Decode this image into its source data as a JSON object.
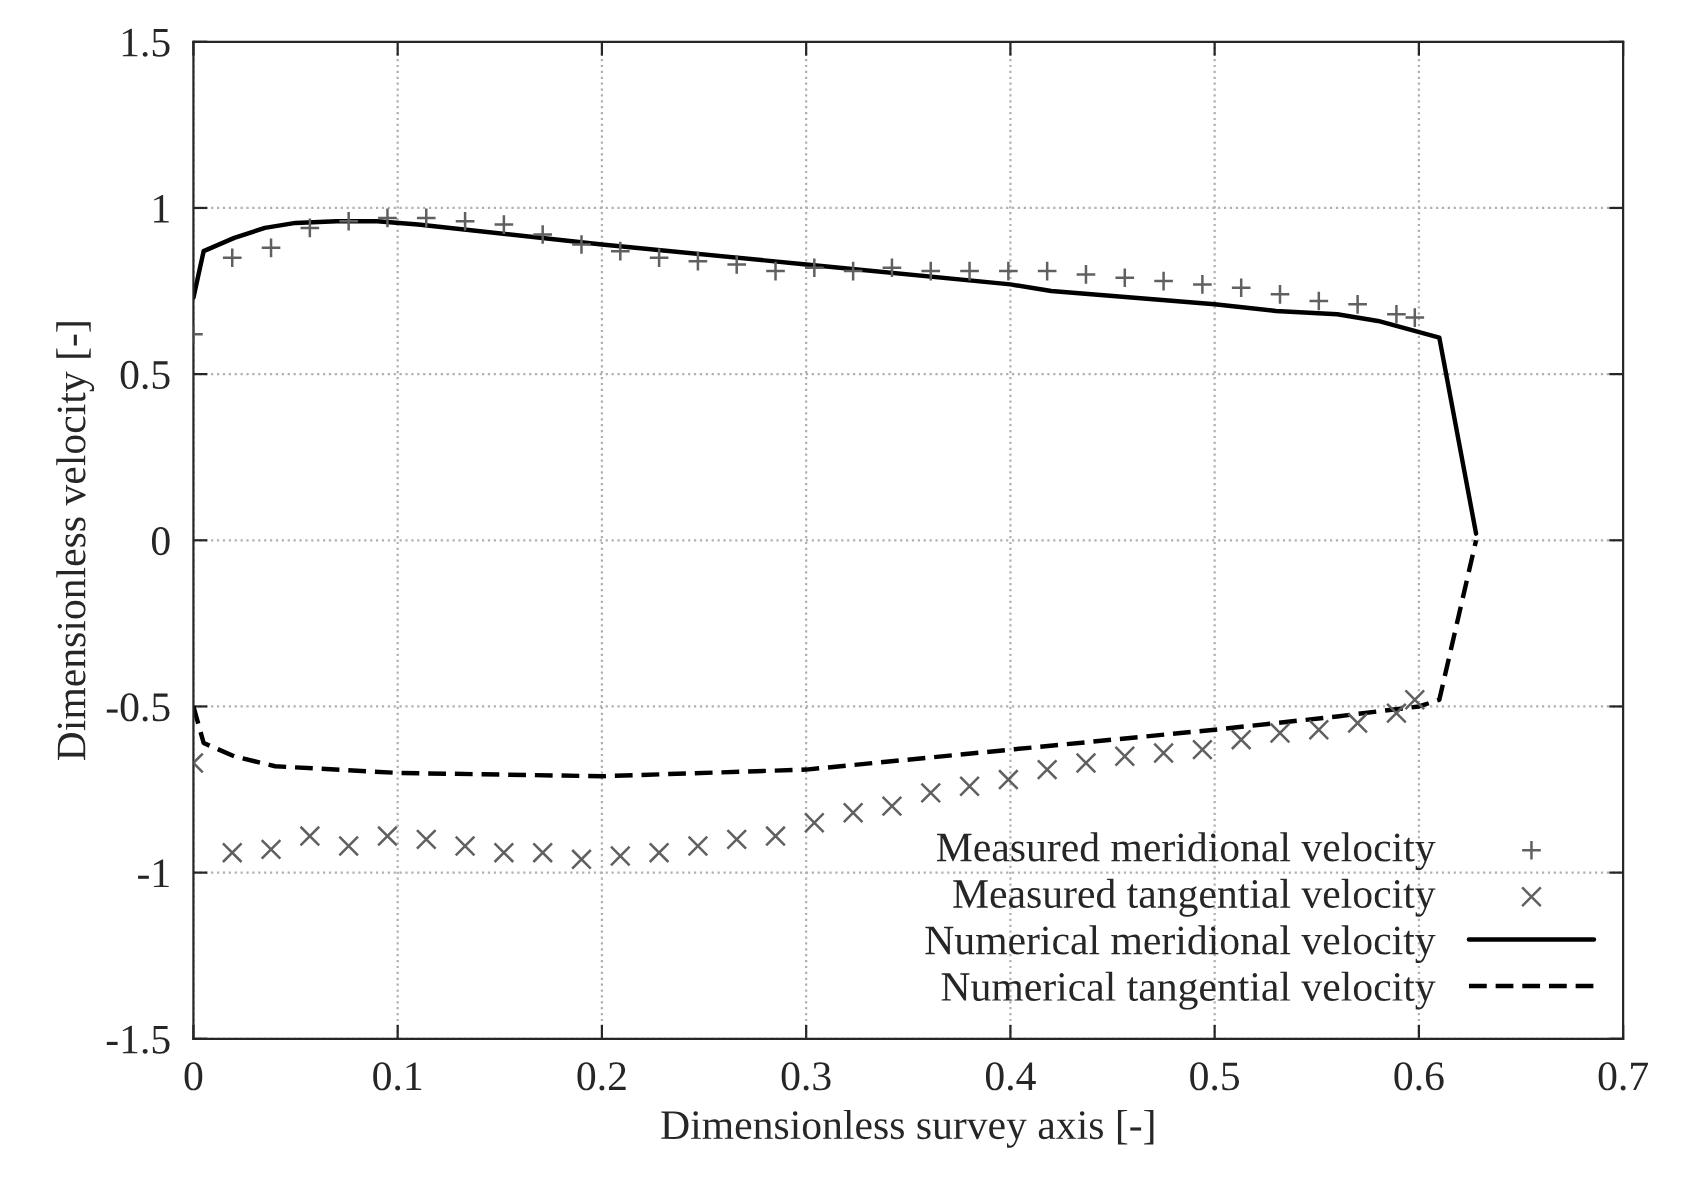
{
  "chart_data": {
    "type": "line",
    "xlabel": "Dimensionless survey axis [-]",
    "ylabel": "Dimensionless velocity [-]",
    "xlim": [
      0,
      0.7
    ],
    "ylim": [
      -1.5,
      1.5
    ],
    "xticks": [
      0,
      0.1,
      0.2,
      0.3,
      0.4,
      0.5,
      0.6,
      0.7
    ],
    "yticks": [
      -1.5,
      -1,
      -0.5,
      0,
      0.5,
      1,
      1.5
    ],
    "grid": true,
    "legend": "bottom right",
    "series": [
      {
        "name": "Measured meridional velocity",
        "type": "scatter",
        "marker": "plus",
        "color": "#606060",
        "x": [
          0,
          0.019,
          0.038,
          0.057,
          0.076,
          0.095,
          0.114,
          0.133,
          0.152,
          0.171,
          0.19,
          0.209,
          0.228,
          0.247,
          0.266,
          0.285,
          0.304,
          0.323,
          0.342,
          0.361,
          0.38,
          0.399,
          0.418,
          0.437,
          0.456,
          0.475,
          0.494,
          0.513,
          0.532,
          0.551,
          0.57,
          0.589,
          0.598
        ],
        "values": [
          0.62,
          0.85,
          0.88,
          0.94,
          0.96,
          0.97,
          0.97,
          0.96,
          0.95,
          0.92,
          0.89,
          0.87,
          0.85,
          0.84,
          0.83,
          0.81,
          0.82,
          0.81,
          0.82,
          0.81,
          0.81,
          0.81,
          0.81,
          0.8,
          0.79,
          0.78,
          0.77,
          0.76,
          0.74,
          0.72,
          0.71,
          0.68,
          0.67
        ]
      },
      {
        "name": "Measured tangential velocity",
        "type": "scatter",
        "marker": "cross",
        "color": "#606060",
        "x": [
          0,
          0.019,
          0.038,
          0.057,
          0.076,
          0.095,
          0.114,
          0.133,
          0.152,
          0.171,
          0.19,
          0.209,
          0.228,
          0.247,
          0.266,
          0.285,
          0.304,
          0.323,
          0.342,
          0.361,
          0.38,
          0.399,
          0.418,
          0.437,
          0.456,
          0.475,
          0.494,
          0.513,
          0.532,
          0.551,
          0.57,
          0.589,
          0.598
        ],
        "values": [
          -0.67,
          -0.94,
          -0.93,
          -0.89,
          -0.92,
          -0.89,
          -0.9,
          -0.92,
          -0.94,
          -0.94,
          -0.96,
          -0.95,
          -0.94,
          -0.92,
          -0.9,
          -0.89,
          -0.85,
          -0.82,
          -0.8,
          -0.76,
          -0.74,
          -0.72,
          -0.69,
          -0.67,
          -0.65,
          -0.64,
          -0.63,
          -0.6,
          -0.58,
          -0.57,
          -0.55,
          -0.52,
          -0.48
        ]
      },
      {
        "name": "Numerical meridional velocity",
        "line_style": "solid",
        "color": "#000000",
        "x": [
          0,
          0.005,
          0.02,
          0.035,
          0.05,
          0.07,
          0.09,
          0.11,
          0.2,
          0.3,
          0.4,
          0.42,
          0.5,
          0.53,
          0.56,
          0.58,
          0.61,
          0.628
        ],
        "values": [
          0.73,
          0.87,
          0.91,
          0.94,
          0.955,
          0.96,
          0.96,
          0.95,
          0.89,
          0.83,
          0.77,
          0.75,
          0.71,
          0.69,
          0.68,
          0.66,
          0.61,
          0.02
        ]
      },
      {
        "name": "Numerical tangential velocity",
        "line_style": "dashed",
        "color": "#000000",
        "x": [
          0,
          0.005,
          0.02,
          0.04,
          0.1,
          0.2,
          0.3,
          0.4,
          0.5,
          0.56,
          0.6,
          0.61,
          0.628
        ],
        "values": [
          -0.5,
          -0.61,
          -0.65,
          -0.68,
          -0.7,
          -0.71,
          -0.69,
          -0.63,
          -0.57,
          -0.53,
          -0.5,
          -0.48,
          0.0
        ]
      }
    ]
  }
}
